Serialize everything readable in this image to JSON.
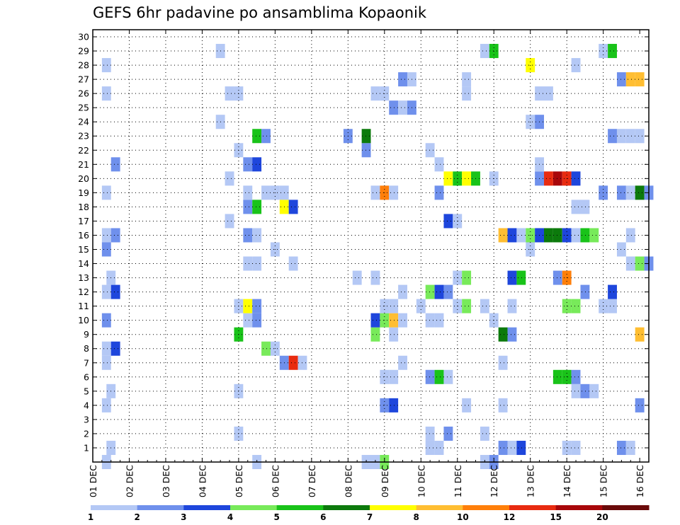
{
  "chart_data": {
    "type": "heatmap",
    "title": "GEFS 6hr padavine po ansamblima Kopaonik",
    "xlabel": "",
    "ylabel": "",
    "x_tick_labels": [
      "01 DEC",
      "02 DEC",
      "03 DEC",
      "04 DEC",
      "05 DEC",
      "06 DEC",
      "07 DEC",
      "08 DEC",
      "09 DEC",
      "10 DEC",
      "11 DEC",
      "12 DEC",
      "13 DEC",
      "14 DEC",
      "15 DEC",
      "16 DEC"
    ],
    "y_tick_labels": [
      "1",
      "2",
      "3",
      "4",
      "5",
      "6",
      "7",
      "8",
      "9",
      "10",
      "11",
      "12",
      "13",
      "14",
      "15",
      "16",
      "17",
      "18",
      "19",
      "20",
      "21",
      "22",
      "23",
      "24",
      "25",
      "26",
      "27",
      "28",
      "29",
      "30"
    ],
    "x_unit": "6-hour step",
    "xlim": [
      0,
      61
    ],
    "ylim": [
      0,
      30.5
    ],
    "grid": true,
    "colorbar": {
      "labels": [
        "1",
        "2",
        "3",
        "4",
        "5",
        "6",
        "7",
        "8",
        "10",
        "12",
        "15",
        "20"
      ],
      "colors": [
        "#b4c8f5",
        "#6f90ec",
        "#1e46dc",
        "#78ea5a",
        "#19c319",
        "#0c7a0c",
        "#ffff00",
        "#ffbe32",
        "#ff7f0a",
        "#e82b10",
        "#a8070a",
        "#6a0a0a"
      ]
    },
    "class_values": [
      1,
      2,
      3,
      4,
      5,
      6,
      7,
      8,
      10,
      12,
      15,
      20
    ],
    "cells": [
      {
        "x": 1.5,
        "y": 0,
        "v": 1
      },
      {
        "x": 18,
        "y": 0,
        "v": 1
      },
      {
        "x": 30,
        "y": 0,
        "v": 1
      },
      {
        "x": 31,
        "y": 0,
        "v": 1
      },
      {
        "x": 32,
        "y": 0,
        "v": 4
      },
      {
        "x": 43,
        "y": 0,
        "v": 1
      },
      {
        "x": 44,
        "y": 0,
        "v": 2
      },
      {
        "x": 2,
        "y": 1,
        "v": 1
      },
      {
        "x": 37,
        "y": 1,
        "v": 1
      },
      {
        "x": 38,
        "y": 1,
        "v": 1
      },
      {
        "x": 45,
        "y": 1,
        "v": 2
      },
      {
        "x": 46,
        "y": 1,
        "v": 1
      },
      {
        "x": 47,
        "y": 1,
        "v": 3
      },
      {
        "x": 52,
        "y": 1,
        "v": 1
      },
      {
        "x": 53,
        "y": 1,
        "v": 1
      },
      {
        "x": 58,
        "y": 1,
        "v": 2
      },
      {
        "x": 59,
        "y": 1,
        "v": 1
      },
      {
        "x": 16,
        "y": 2,
        "v": 1
      },
      {
        "x": 37,
        "y": 2,
        "v": 1
      },
      {
        "x": 39,
        "y": 2,
        "v": 2
      },
      {
        "x": 43,
        "y": 2,
        "v": 1
      },
      {
        "x": 1.5,
        "y": 4,
        "v": 1
      },
      {
        "x": 32,
        "y": 4,
        "v": 2
      },
      {
        "x": 33,
        "y": 4,
        "v": 3
      },
      {
        "x": 41,
        "y": 4,
        "v": 1
      },
      {
        "x": 45,
        "y": 4,
        "v": 1
      },
      {
        "x": 60,
        "y": 4,
        "v": 2
      },
      {
        "x": 2,
        "y": 5,
        "v": 1
      },
      {
        "x": 16,
        "y": 5,
        "v": 1
      },
      {
        "x": 53,
        "y": 5,
        "v": 1
      },
      {
        "x": 54,
        "y": 5,
        "v": 2
      },
      {
        "x": 55,
        "y": 5,
        "v": 1
      },
      {
        "x": 32,
        "y": 6,
        "v": 1
      },
      {
        "x": 33,
        "y": 6,
        "v": 1
      },
      {
        "x": 37,
        "y": 6,
        "v": 2
      },
      {
        "x": 38,
        "y": 6,
        "v": 5
      },
      {
        "x": 39,
        "y": 6,
        "v": 1
      },
      {
        "x": 51,
        "y": 6,
        "v": 5
      },
      {
        "x": 52,
        "y": 6,
        "v": 5
      },
      {
        "x": 53,
        "y": 6,
        "v": 2
      },
      {
        "x": 1.5,
        "y": 7,
        "v": 1
      },
      {
        "x": 21,
        "y": 7,
        "v": 2
      },
      {
        "x": 22,
        "y": 7,
        "v": 12
      },
      {
        "x": 23,
        "y": 7,
        "v": 1
      },
      {
        "x": 34,
        "y": 7,
        "v": 1
      },
      {
        "x": 45,
        "y": 7,
        "v": 1
      },
      {
        "x": 1.5,
        "y": 8,
        "v": 1
      },
      {
        "x": 2.5,
        "y": 8,
        "v": 3
      },
      {
        "x": 19,
        "y": 8,
        "v": 4
      },
      {
        "x": 20,
        "y": 8,
        "v": 1
      },
      {
        "x": 16,
        "y": 9,
        "v": 5
      },
      {
        "x": 31,
        "y": 9,
        "v": 4
      },
      {
        "x": 33,
        "y": 9,
        "v": 1
      },
      {
        "x": 45,
        "y": 9,
        "v": 6
      },
      {
        "x": 46,
        "y": 9,
        "v": 2
      },
      {
        "x": 60,
        "y": 9,
        "v": 8
      },
      {
        "x": 1.5,
        "y": 10,
        "v": 2
      },
      {
        "x": 17,
        "y": 10,
        "v": 1
      },
      {
        "x": 18,
        "y": 10,
        "v": 2
      },
      {
        "x": 31,
        "y": 10,
        "v": 3
      },
      {
        "x": 32,
        "y": 10,
        "v": 4
      },
      {
        "x": 33,
        "y": 10,
        "v": 8
      },
      {
        "x": 34,
        "y": 10,
        "v": 1
      },
      {
        "x": 37,
        "y": 10,
        "v": 1
      },
      {
        "x": 38,
        "y": 10,
        "v": 1
      },
      {
        "x": 44,
        "y": 10,
        "v": 1
      },
      {
        "x": 16,
        "y": 11,
        "v": 1
      },
      {
        "x": 17,
        "y": 11,
        "v": 7
      },
      {
        "x": 18,
        "y": 11,
        "v": 2
      },
      {
        "x": 32,
        "y": 11,
        "v": 1
      },
      {
        "x": 33,
        "y": 11,
        "v": 1
      },
      {
        "x": 36,
        "y": 11,
        "v": 1
      },
      {
        "x": 40,
        "y": 11,
        "v": 1
      },
      {
        "x": 41,
        "y": 11,
        "v": 4
      },
      {
        "x": 43,
        "y": 11,
        "v": 1
      },
      {
        "x": 46,
        "y": 11,
        "v": 1
      },
      {
        "x": 52,
        "y": 11,
        "v": 4
      },
      {
        "x": 53,
        "y": 11,
        "v": 4
      },
      {
        "x": 56,
        "y": 11,
        "v": 1
      },
      {
        "x": 57,
        "y": 11,
        "v": 1
      },
      {
        "x": 1.5,
        "y": 12,
        "v": 1
      },
      {
        "x": 2.5,
        "y": 12,
        "v": 3
      },
      {
        "x": 34,
        "y": 12,
        "v": 1
      },
      {
        "x": 37,
        "y": 12,
        "v": 4
      },
      {
        "x": 38,
        "y": 12,
        "v": 3
      },
      {
        "x": 39,
        "y": 12,
        "v": 2
      },
      {
        "x": 54,
        "y": 12,
        "v": 2
      },
      {
        "x": 57,
        "y": 12,
        "v": 3
      },
      {
        "x": 2,
        "y": 13,
        "v": 1
      },
      {
        "x": 29,
        "y": 13,
        "v": 1
      },
      {
        "x": 31,
        "y": 13,
        "v": 1
      },
      {
        "x": 40,
        "y": 13,
        "v": 1
      },
      {
        "x": 41,
        "y": 13,
        "v": 4
      },
      {
        "x": 46,
        "y": 13,
        "v": 3
      },
      {
        "x": 47,
        "y": 13,
        "v": 5
      },
      {
        "x": 51,
        "y": 13,
        "v": 2
      },
      {
        "x": 52,
        "y": 13,
        "v": 10
      },
      {
        "x": 17,
        "y": 14,
        "v": 1
      },
      {
        "x": 18,
        "y": 14,
        "v": 1
      },
      {
        "x": 22,
        "y": 14,
        "v": 1
      },
      {
        "x": 59,
        "y": 14,
        "v": 1
      },
      {
        "x": 60,
        "y": 14,
        "v": 4
      },
      {
        "x": 61,
        "y": 14,
        "v": 2
      },
      {
        "x": 1.5,
        "y": 15,
        "v": 2
      },
      {
        "x": 20,
        "y": 15,
        "v": 1
      },
      {
        "x": 48,
        "y": 15,
        "v": 1
      },
      {
        "x": 58,
        "y": 15,
        "v": 1
      },
      {
        "x": 1.5,
        "y": 16,
        "v": 1
      },
      {
        "x": 2.5,
        "y": 16,
        "v": 2
      },
      {
        "x": 17,
        "y": 16,
        "v": 2
      },
      {
        "x": 18,
        "y": 16,
        "v": 1
      },
      {
        "x": 45,
        "y": 16,
        "v": 8
      },
      {
        "x": 46,
        "y": 16,
        "v": 3
      },
      {
        "x": 47,
        "y": 16,
        "v": 1
      },
      {
        "x": 48,
        "y": 16,
        "v": 4
      },
      {
        "x": 49,
        "y": 16,
        "v": 3
      },
      {
        "x": 50,
        "y": 16,
        "v": 6
      },
      {
        "x": 51,
        "y": 16,
        "v": 6
      },
      {
        "x": 52,
        "y": 16,
        "v": 3
      },
      {
        "x": 53,
        "y": 16,
        "v": 1
      },
      {
        "x": 54,
        "y": 16,
        "v": 5
      },
      {
        "x": 55,
        "y": 16,
        "v": 4
      },
      {
        "x": 59,
        "y": 16,
        "v": 1
      },
      {
        "x": 15,
        "y": 17,
        "v": 1
      },
      {
        "x": 39,
        "y": 17,
        "v": 3
      },
      {
        "x": 40,
        "y": 17,
        "v": 1
      },
      {
        "x": 17,
        "y": 18,
        "v": 2
      },
      {
        "x": 18,
        "y": 18,
        "v": 5
      },
      {
        "x": 21,
        "y": 18,
        "v": 7
      },
      {
        "x": 22,
        "y": 18,
        "v": 3
      },
      {
        "x": 53,
        "y": 18,
        "v": 1
      },
      {
        "x": 54,
        "y": 18,
        "v": 1
      },
      {
        "x": 1.5,
        "y": 19,
        "v": 1
      },
      {
        "x": 17,
        "y": 19,
        "v": 1
      },
      {
        "x": 19,
        "y": 19,
        "v": 1
      },
      {
        "x": 20,
        "y": 19,
        "v": 1
      },
      {
        "x": 21,
        "y": 19,
        "v": 1
      },
      {
        "x": 31,
        "y": 19,
        "v": 1
      },
      {
        "x": 32,
        "y": 19,
        "v": 10
      },
      {
        "x": 33,
        "y": 19,
        "v": 1
      },
      {
        "x": 38,
        "y": 19,
        "v": 2
      },
      {
        "x": 56,
        "y": 19,
        "v": 2
      },
      {
        "x": 58,
        "y": 19,
        "v": 2
      },
      {
        "x": 59,
        "y": 19,
        "v": 1
      },
      {
        "x": 60,
        "y": 19,
        "v": 6
      },
      {
        "x": 61,
        "y": 19,
        "v": 2
      },
      {
        "x": 15,
        "y": 20,
        "v": 1
      },
      {
        "x": 39,
        "y": 20,
        "v": 7
      },
      {
        "x": 40,
        "y": 20,
        "v": 5
      },
      {
        "x": 41,
        "y": 20,
        "v": 7
      },
      {
        "x": 42,
        "y": 20,
        "v": 5
      },
      {
        "x": 44,
        "y": 20,
        "v": 1
      },
      {
        "x": 49,
        "y": 20,
        "v": 2
      },
      {
        "x": 50,
        "y": 20,
        "v": 12
      },
      {
        "x": 51,
        "y": 20,
        "v": 15
      },
      {
        "x": 52,
        "y": 20,
        "v": 12
      },
      {
        "x": 53,
        "y": 20,
        "v": 3
      },
      {
        "x": 2.5,
        "y": 21,
        "v": 2
      },
      {
        "x": 17,
        "y": 21,
        "v": 2
      },
      {
        "x": 18,
        "y": 21,
        "v": 3
      },
      {
        "x": 38,
        "y": 21,
        "v": 1
      },
      {
        "x": 49,
        "y": 21,
        "v": 1
      },
      {
        "x": 16,
        "y": 22,
        "v": 1
      },
      {
        "x": 30,
        "y": 22,
        "v": 2
      },
      {
        "x": 37,
        "y": 22,
        "v": 1
      },
      {
        "x": 18,
        "y": 23,
        "v": 5
      },
      {
        "x": 19,
        "y": 23,
        "v": 2
      },
      {
        "x": 28,
        "y": 23,
        "v": 2
      },
      {
        "x": 30,
        "y": 23,
        "v": 6
      },
      {
        "x": 57,
        "y": 23,
        "v": 2
      },
      {
        "x": 58,
        "y": 23,
        "v": 1
      },
      {
        "x": 59,
        "y": 23,
        "v": 1
      },
      {
        "x": 60,
        "y": 23,
        "v": 1
      },
      {
        "x": 14,
        "y": 24,
        "v": 1
      },
      {
        "x": 48,
        "y": 24,
        "v": 1
      },
      {
        "x": 49,
        "y": 24,
        "v": 2
      },
      {
        "x": 33,
        "y": 25,
        "v": 2
      },
      {
        "x": 34,
        "y": 25,
        "v": 1
      },
      {
        "x": 35,
        "y": 25,
        "v": 2
      },
      {
        "x": 1.5,
        "y": 26,
        "v": 1
      },
      {
        "x": 15,
        "y": 26,
        "v": 1
      },
      {
        "x": 16,
        "y": 26,
        "v": 1
      },
      {
        "x": 31,
        "y": 26,
        "v": 1
      },
      {
        "x": 32,
        "y": 26,
        "v": 1
      },
      {
        "x": 41,
        "y": 26,
        "v": 1
      },
      {
        "x": 49,
        "y": 26,
        "v": 1
      },
      {
        "x": 50,
        "y": 26,
        "v": 1
      },
      {
        "x": 34,
        "y": 27,
        "v": 2
      },
      {
        "x": 35,
        "y": 27,
        "v": 1
      },
      {
        "x": 41,
        "y": 27,
        "v": 1
      },
      {
        "x": 58,
        "y": 27,
        "v": 2
      },
      {
        "x": 59,
        "y": 27,
        "v": 8
      },
      {
        "x": 60,
        "y": 27,
        "v": 8
      },
      {
        "x": 1.5,
        "y": 28,
        "v": 1
      },
      {
        "x": 48,
        "y": 28,
        "v": 7
      },
      {
        "x": 53,
        "y": 28,
        "v": 1
      },
      {
        "x": 14,
        "y": 29,
        "v": 1
      },
      {
        "x": 43,
        "y": 29,
        "v": 1
      },
      {
        "x": 44,
        "y": 29,
        "v": 5
      },
      {
        "x": 56,
        "y": 29,
        "v": 1
      },
      {
        "x": 57,
        "y": 29,
        "v": 5
      }
    ]
  }
}
